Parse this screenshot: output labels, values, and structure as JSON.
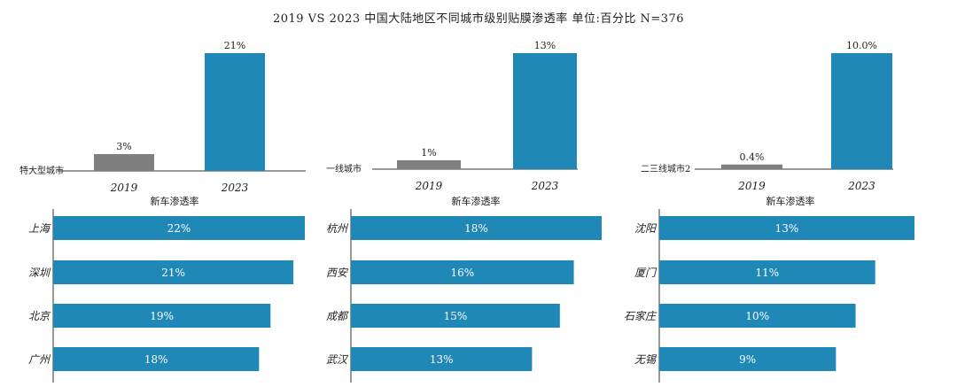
{
  "title": "2019 VS 2023  中国大陆地区不同城市级别贴膜渗透率  单位:百分比  N=376",
  "colors": {
    "old": "#7f7f7f",
    "new": "#1f88b7",
    "axis": "#333333"
  },
  "chart_data": [
    {
      "type": "bar",
      "category": "特大型城市",
      "categories": [
        "2019",
        "2023"
      ],
      "values": [
        3,
        21
      ],
      "value_labels": [
        "3%",
        "21%"
      ],
      "unit": "%",
      "sub": {
        "type": "bar",
        "title": "新车渗透率",
        "categories": [
          "上海",
          "深圳",
          "北京",
          "广州"
        ],
        "values": [
          22,
          21,
          19,
          18
        ],
        "value_labels": [
          "22%",
          "21%",
          "19%",
          "18%"
        ]
      }
    },
    {
      "type": "bar",
      "category": "一线城市",
      "categories": [
        "2019",
        "2023"
      ],
      "values": [
        1,
        13
      ],
      "value_labels": [
        "1%",
        "13%"
      ],
      "unit": "%",
      "sub": {
        "type": "bar",
        "title": "新车渗透率",
        "categories": [
          "杭州",
          "西安",
          "成都",
          "武汉"
        ],
        "values": [
          18,
          16,
          15,
          13
        ],
        "value_labels": [
          "18%",
          "16%",
          "15%",
          "13%"
        ]
      }
    },
    {
      "type": "bar",
      "category": "二三线城市2",
      "categories": [
        "2019",
        "2023"
      ],
      "values": [
        0.4,
        10.0
      ],
      "value_labels": [
        "0.4%",
        "10.0%"
      ],
      "unit": "%",
      "sub": {
        "type": "bar",
        "title": "新车渗透率",
        "categories": [
          "沈阳",
          "厦门",
          "石家庄",
          "无锡"
        ],
        "values": [
          13,
          11,
          10,
          9
        ],
        "value_labels": [
          "13%",
          "11%",
          "10%",
          "9%"
        ]
      }
    }
  ]
}
